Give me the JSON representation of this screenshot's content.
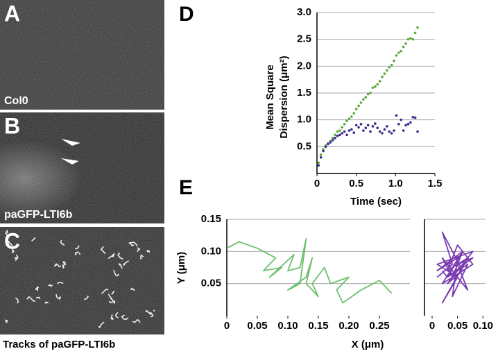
{
  "panels": [
    {
      "letter": "A",
      "label": "Col0"
    },
    {
      "letter": "B",
      "label": "paGFP-LTI6b"
    },
    {
      "letter": "C"
    }
  ],
  "caption": "Tracks of paGFP-LTI6b",
  "chart_data": [
    {
      "type": "scatter",
      "panel_label": "D",
      "xlabel": "Time (sec)",
      "ylabel": [
        "Mean Square",
        "Dispersion (μm²)"
      ],
      "x": [
        0.02,
        0.05,
        0.08,
        0.11,
        0.14,
        0.17,
        0.2,
        0.23,
        0.26,
        0.29,
        0.32,
        0.35,
        0.38,
        0.41,
        0.44,
        0.47,
        0.5,
        0.53,
        0.56,
        0.59,
        0.62,
        0.65,
        0.68,
        0.71,
        0.74,
        0.77,
        0.8,
        0.83,
        0.86,
        0.89,
        0.92,
        0.95,
        0.98,
        1.01,
        1.04,
        1.07,
        1.1,
        1.13,
        1.16,
        1.19,
        1.22,
        1.25,
        1.28
      ],
      "series": [
        {
          "color": "#5aa83c",
          "values": [
            0.2,
            0.35,
            0.45,
            0.52,
            0.56,
            0.6,
            0.66,
            0.72,
            0.78,
            0.8,
            0.86,
            0.92,
            0.98,
            1.02,
            1.06,
            1.12,
            1.2,
            1.26,
            1.32,
            1.38,
            1.42,
            1.48,
            1.5,
            1.6,
            1.62,
            1.66,
            1.72,
            1.8,
            1.86,
            1.92,
            1.98,
            2.02,
            2.1,
            2.2,
            2.25,
            2.28,
            2.36,
            2.42,
            2.5,
            2.52,
            2.5,
            2.62,
            2.72
          ]
        },
        {
          "color": "#3a2a8c",
          "values": [
            0.15,
            0.3,
            0.42,
            0.5,
            0.55,
            0.58,
            0.62,
            0.66,
            0.7,
            0.72,
            0.75,
            0.78,
            0.72,
            0.8,
            0.82,
            0.76,
            0.9,
            0.86,
            0.92,
            0.8,
            0.85,
            0.9,
            0.78,
            0.88,
            0.93,
            0.85,
            0.78,
            0.75,
            0.82,
            0.88,
            0.78,
            0.75,
            0.8,
            1.08,
            0.92,
            1.0,
            0.8,
            0.9,
            0.92,
            0.95,
            1.05,
            1.04,
            0.78
          ]
        }
      ],
      "xlim": [
        0,
        1.5
      ],
      "xticks": [
        0,
        0.5,
        {
          "value": 1,
          "label": "1.0"
        },
        1.5
      ],
      "ylim": [
        0,
        3
      ],
      "yticks": [
        0.5,
        {
          "value": 1,
          "label": "1.0"
        },
        1.5,
        {
          "value": 2,
          "label": "2.0"
        },
        2.5,
        {
          "value": 3,
          "label": "3.0"
        }
      ],
      "grid": true,
      "ytick_labels": true
    },
    {
      "type": "line",
      "panel_label": "E",
      "ylabel": "Y (μm)",
      "xlabel": "X (μm)",
      "series": [
        {
          "color": "#6cbf6c",
          "x": [
            0,
            0.02,
            0.05,
            0.08,
            0.06,
            0.09,
            0.07,
            0.11,
            0.1,
            0.12,
            0.13,
            0.12,
            0.1,
            0.13,
            0.14,
            0.13,
            0.15,
            0.14,
            0.16,
            0.17,
            0.2,
            0.18,
            0.19,
            0.22,
            0.24,
            0.25,
            0.27
          ],
          "values": [
            0.105,
            0.115,
            0.105,
            0.09,
            0.07,
            0.075,
            0.06,
            0.095,
            0.07,
            0.075,
            0.12,
            0.05,
            0.04,
            0.06,
            0.09,
            0.05,
            0.03,
            0.05,
            0.075,
            0.05,
            0.06,
            0.04,
            0.02,
            0.04,
            0.05,
            0.055,
            0.035
          ]
        }
      ],
      "xlim": [
        0,
        0.3
      ],
      "xticks": [
        0,
        0.05,
        {
          "value": 0.1,
          "label": "0.10"
        },
        0.15,
        {
          "value": 0.2,
          "label": "0.20"
        },
        0.25
      ],
      "ylim": [
        0,
        0.15
      ],
      "yticks": [
        0.05,
        {
          "value": 0.1,
          "label": "0.10"
        },
        0.15
      ],
      "grid": true,
      "ytick_labels": true
    },
    {
      "type": "line",
      "series": [
        {
          "color": "#7a3ab0",
          "x": [
            0.01,
            0.04,
            0.02,
            0.06,
            0.03,
            0.08,
            0.01,
            0.05,
            0.02,
            0.07,
            0.03,
            0.05,
            0.08,
            0.02,
            0.06,
            0.04,
            0.02,
            0.07,
            0.05,
            0.08,
            0.03,
            0.06,
            0.01,
            0.05,
            0.04,
            0.07,
            0.03,
            0.02
          ],
          "values": [
            0.06,
            0.08,
            0.13,
            0.07,
            0.05,
            0.1,
            0.08,
            0.06,
            0.02,
            0.09,
            0.07,
            0.11,
            0.08,
            0.05,
            0.1,
            0.06,
            0.09,
            0.04,
            0.08,
            0.09,
            0.06,
            0.1,
            0.07,
            0.09,
            0.03,
            0.08,
            0.06,
            0.07
          ]
        }
      ],
      "xlim": [
        -0.015,
        0.105
      ],
      "xticks": [
        0,
        0.05,
        {
          "value": 0.1,
          "label": "0.10"
        }
      ],
      "ylim": [
        0,
        0.15
      ],
      "yticks": [
        0.05,
        {
          "value": 0.1,
          "label": "0.10"
        },
        0.15
      ],
      "grid": true,
      "ytick_labels": false
    }
  ]
}
